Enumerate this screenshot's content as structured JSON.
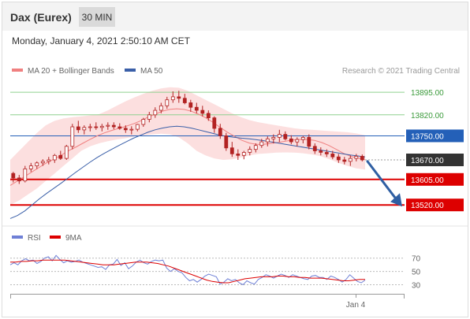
{
  "header": {
    "instrument": "Dax (Eurex)",
    "timeframe": "30 MIN",
    "datetime": "Monday, January 4, 2021 2:50:10 AM CET"
  },
  "legend": {
    "ma20_bollinger": "MA 20 + Bollinger Bands",
    "ma50": "MA 50",
    "credit": "Research © 2021 Trading Central"
  },
  "rsi_legend": {
    "rsi": "RSI",
    "ma9": "9MA"
  },
  "colors": {
    "candle": "#b22222",
    "ma20": "#f08080",
    "bollinger_fill": "#fcd9d9",
    "ma50": "#3a5fa8",
    "support": "#dd0000",
    "resistance": "#8fd18f",
    "pivot": "#2460b8",
    "last": "#333333",
    "forecast_arrow": "#2f5fa3",
    "rsi_line": "#6f80d6"
  },
  "chart_data": [
    {
      "type": "candlestick",
      "title": "Dax (Eurex)",
      "timeframe": "30 MIN",
      "ylim": [
        13455,
        13940
      ],
      "x_tick_labels": [
        "Jan 4"
      ],
      "candles_approx": [
        [
          13625,
          13630,
          13595,
          13610
        ],
        [
          13610,
          13620,
          13590,
          13600
        ],
        [
          13600,
          13650,
          13595,
          13640
        ],
        [
          13640,
          13660,
          13630,
          13650
        ],
        [
          13650,
          13665,
          13640,
          13660
        ],
        [
          13660,
          13672,
          13650,
          13665
        ],
        [
          13665,
          13680,
          13655,
          13670
        ],
        [
          13670,
          13690,
          13660,
          13685
        ],
        [
          13685,
          13700,
          13670,
          13675
        ],
        [
          13675,
          13720,
          13670,
          13715
        ],
        [
          13715,
          13790,
          13705,
          13780
        ],
        [
          13780,
          13800,
          13760,
          13770
        ],
        [
          13770,
          13785,
          13755,
          13778
        ],
        [
          13778,
          13790,
          13765,
          13780
        ],
        [
          13780,
          13795,
          13770,
          13778
        ],
        [
          13778,
          13790,
          13765,
          13782
        ],
        [
          13782,
          13795,
          13770,
          13785
        ],
        [
          13785,
          13795,
          13772,
          13780
        ],
        [
          13780,
          13792,
          13770,
          13775
        ],
        [
          13775,
          13785,
          13760,
          13770
        ],
        [
          13770,
          13782,
          13755,
          13772
        ],
        [
          13772,
          13790,
          13765,
          13788
        ],
        [
          13788,
          13810,
          13780,
          13805
        ],
        [
          13805,
          13830,
          13795,
          13820
        ],
        [
          13820,
          13845,
          13810,
          13835
        ],
        [
          13835,
          13860,
          13825,
          13850
        ],
        [
          13850,
          13880,
          13840,
          13870
        ],
        [
          13870,
          13898,
          13860,
          13880
        ],
        [
          13880,
          13900,
          13860,
          13875
        ],
        [
          13875,
          13890,
          13855,
          13860
        ],
        [
          13860,
          13870,
          13830,
          13845
        ],
        [
          13845,
          13860,
          13825,
          13835
        ],
        [
          13835,
          13850,
          13815,
          13825
        ],
        [
          13825,
          13835,
          13800,
          13810
        ],
        [
          13810,
          13815,
          13760,
          13775
        ],
        [
          13775,
          13790,
          13740,
          13750
        ],
        [
          13750,
          13760,
          13700,
          13710
        ],
        [
          13710,
          13730,
          13680,
          13690
        ],
        [
          13690,
          13705,
          13670,
          13685
        ],
        [
          13685,
          13700,
          13672,
          13695
        ],
        [
          13695,
          13715,
          13685,
          13705
        ],
        [
          13705,
          13725,
          13695,
          13718
        ],
        [
          13718,
          13740,
          13710,
          13730
        ],
        [
          13730,
          13748,
          13715,
          13740
        ],
        [
          13740,
          13755,
          13725,
          13745
        ],
        [
          13745,
          13770,
          13730,
          13755
        ],
        [
          13755,
          13765,
          13735,
          13740
        ],
        [
          13740,
          13752,
          13722,
          13730
        ],
        [
          13730,
          13745,
          13715,
          13738
        ],
        [
          13738,
          13750,
          13725,
          13745
        ],
        [
          13745,
          13755,
          13705,
          13715
        ],
        [
          13715,
          13725,
          13690,
          13700
        ],
        [
          13700,
          13712,
          13685,
          13695
        ],
        [
          13695,
          13705,
          13680,
          13690
        ],
        [
          13690,
          13700,
          13672,
          13680
        ],
        [
          13680,
          13690,
          13660,
          13670
        ],
        [
          13670,
          13680,
          13655,
          13665
        ],
        [
          13665,
          13685,
          13650,
          13675
        ],
        [
          13675,
          13690,
          13665,
          13682
        ],
        [
          13682,
          13688,
          13665,
          13670
        ]
      ],
      "ma20_approx": [
        13585,
        13600,
        13615,
        13630,
        13645,
        13660,
        13672,
        13685,
        13700,
        13712,
        13725,
        13738,
        13750,
        13760,
        13768,
        13775,
        13782,
        13790,
        13800,
        13812,
        13822,
        13832,
        13838,
        13840,
        13838,
        13832,
        13822,
        13810,
        13795,
        13778,
        13762,
        13748,
        13735,
        13726,
        13722,
        13722,
        13725,
        13728,
        13732,
        13736,
        13738,
        13738,
        13735,
        13728,
        13718,
        13705,
        13692,
        13682,
        13676,
        13672
      ],
      "ma50_approx": [
        13475,
        13485,
        13500,
        13520,
        13540,
        13558,
        13575,
        13592,
        13610,
        13628,
        13645,
        13662,
        13678,
        13692,
        13705,
        13718,
        13730,
        13742,
        13752,
        13762,
        13770,
        13776,
        13780,
        13782,
        13780,
        13776,
        13770,
        13764,
        13758,
        13752,
        13748,
        13745,
        13742,
        13740,
        13737,
        13734,
        13730,
        13726,
        13722,
        13718,
        13714,
        13710,
        13706,
        13702,
        13698,
        13694,
        13690,
        13686,
        13683,
        13680
      ],
      "bollinger_upper_approx": [
        13670,
        13700,
        13730,
        13760,
        13785,
        13800,
        13808,
        13812,
        13815,
        13818,
        13822,
        13835,
        13850,
        13865,
        13878,
        13890,
        13900,
        13908,
        13912,
        13910,
        13900,
        13885,
        13870,
        13855,
        13840,
        13825,
        13812,
        13802,
        13795,
        13790,
        13785,
        13780,
        13775,
        13772,
        13770,
        13768,
        13766,
        13764,
        13762,
        13758,
        13752
      ],
      "bollinger_lower_approx": [
        13520,
        13535,
        13555,
        13575,
        13600,
        13625,
        13650,
        13675,
        13700,
        13715,
        13725,
        13732,
        13738,
        13742,
        13748,
        13752,
        13755,
        13757,
        13755,
        13745,
        13725,
        13700,
        13685,
        13675,
        13670,
        13672,
        13678,
        13685,
        13690,
        13692,
        13694,
        13695,
        13694,
        13692,
        13688,
        13682,
        13672,
        13660,
        13650,
        13642,
        13638
      ],
      "levels": [
        {
          "value": 13895.0,
          "label": "13895.00",
          "kind": "resistance"
        },
        {
          "value": 13820.0,
          "label": "13820.00",
          "kind": "resistance"
        },
        {
          "value": 13750.0,
          "label": "13750.00",
          "kind": "pivot"
        },
        {
          "value": 13670.0,
          "label": "13670.00",
          "kind": "last"
        },
        {
          "value": 13605.0,
          "label": "13605.00",
          "kind": "support"
        },
        {
          "value": 13520.0,
          "label": "13520.00",
          "kind": "support"
        }
      ],
      "forecast_arrow": {
        "from": 13665,
        "to": 13525
      }
    },
    {
      "type": "line",
      "title": "RSI",
      "ylim": [
        20,
        85
      ],
      "y_ticks": [
        70,
        50,
        30
      ],
      "y_tick_labels": [
        "70",
        "50",
        "30"
      ],
      "series": [
        {
          "name": "RSI",
          "values": [
            60,
            63,
            60,
            66,
            69,
            66,
            67,
            62,
            65,
            70,
            72,
            66,
            74,
            68,
            63,
            66,
            64,
            65,
            67,
            64,
            62,
            60,
            58,
            56,
            57,
            53,
            60,
            61,
            68,
            59,
            63,
            54,
            58,
            64,
            67,
            63,
            61,
            65,
            67,
            66,
            67,
            55,
            50,
            54,
            50,
            48,
            41,
            36,
            38,
            34,
            38,
            43,
            46,
            44,
            42,
            31,
            34,
            39,
            36,
            38,
            33,
            30,
            36,
            33,
            31,
            38,
            41,
            45,
            43,
            40,
            43,
            46,
            44,
            41,
            45,
            43,
            41,
            39,
            38,
            43,
            44,
            41,
            41,
            38,
            43,
            41,
            38,
            34,
            38,
            45,
            40,
            35,
            33,
            37
          ]
        },
        {
          "name": "9MA",
          "values": [
            64,
            64,
            65,
            65,
            66,
            66,
            67,
            67,
            67,
            67,
            67,
            66,
            65,
            64,
            63,
            62,
            61,
            60,
            60,
            60,
            61,
            62,
            63,
            64,
            64,
            64,
            63,
            62,
            60,
            58,
            55,
            52,
            49,
            46,
            43,
            40,
            37,
            35,
            34,
            33,
            33,
            35,
            37,
            39,
            40,
            41,
            42,
            42,
            42,
            43,
            43,
            42,
            42,
            41,
            41,
            40,
            40,
            40,
            39,
            38,
            37,
            36,
            36,
            37,
            38,
            38
          ]
        }
      ]
    }
  ]
}
